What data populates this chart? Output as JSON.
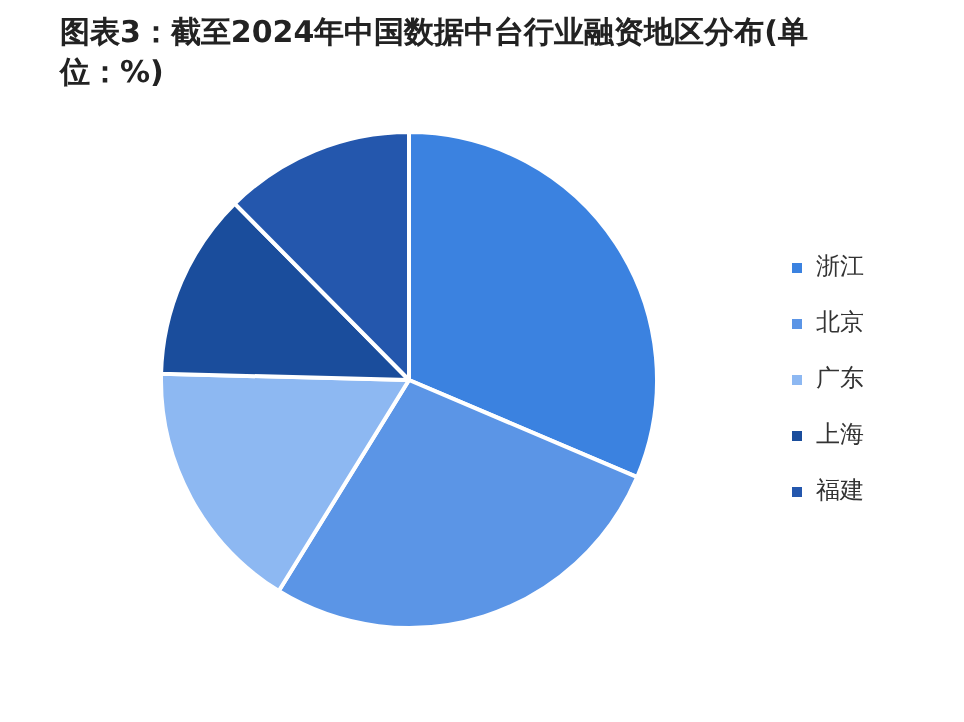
{
  "chart_data": {
    "type": "pie",
    "title": "图表3：截至2024年中国数据中台行业融资地区分布(单位：%)",
    "categories": [
      "浙江",
      "北京",
      "广东",
      "上海",
      "福建"
    ],
    "values": [
      31.4,
      27.4,
      16.6,
      12.2,
      12.4
    ],
    "colors": [
      "#3b82e0",
      "#5b95e6",
      "#8db8f2",
      "#1a4d9c",
      "#2457ad"
    ],
    "legend": "right"
  }
}
